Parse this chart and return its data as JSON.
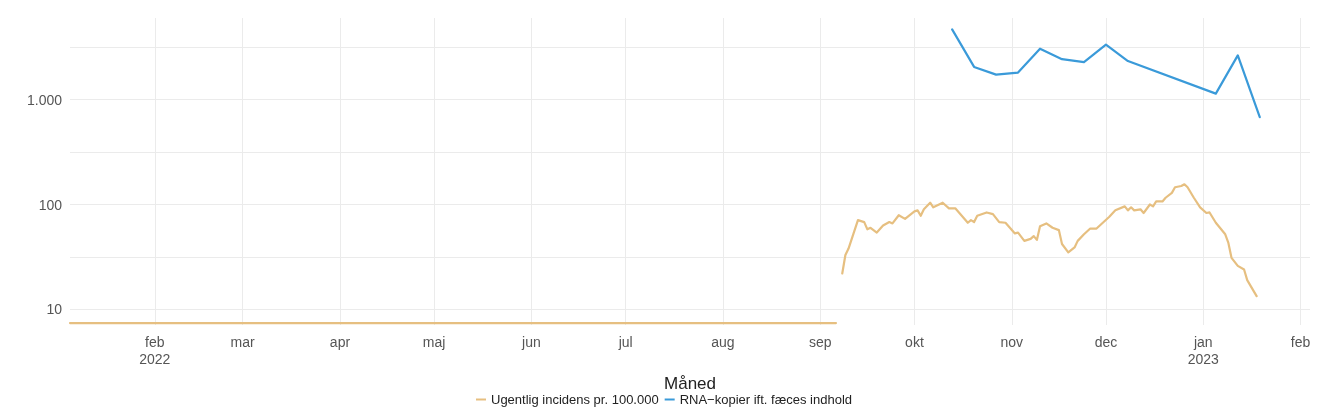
{
  "chart_data": {
    "type": "line",
    "xlabel": "Måned",
    "xlim": [
      "2022-01-05",
      "2023-02-04"
    ],
    "xticks": [
      {
        "value": "2022-02-01",
        "label": "feb\n2022"
      },
      {
        "value": "2022-03-01",
        "label": "mar"
      },
      {
        "value": "2022-04-01",
        "label": "apr"
      },
      {
        "value": "2022-05-01",
        "label": "maj"
      },
      {
        "value": "2022-06-01",
        "label": "jun"
      },
      {
        "value": "2022-07-01",
        "label": "jul"
      },
      {
        "value": "2022-08-01",
        "label": "aug"
      },
      {
        "value": "2022-09-01",
        "label": "sep"
      },
      {
        "value": "2022-10-01",
        "label": "okt"
      },
      {
        "value": "2022-11-01",
        "label": "nov"
      },
      {
        "value": "2022-12-01",
        "label": "dec"
      },
      {
        "value": "2023-01-01",
        "label": "jan\n2023"
      },
      {
        "value": "2023-02-01",
        "label": "feb"
      }
    ],
    "ylim": [
      7.1,
      6000
    ],
    "log": "y",
    "yticks": [
      10,
      {
        "value": 31.62,
        "label": null
      },
      100,
      {
        "value": 316.2,
        "label": null
      },
      {
        "value": 1000,
        "label": "1.000"
      },
      {
        "value": 3162,
        "label": null
      }
    ],
    "grid": true,
    "legend": "bottom",
    "series": [
      {
        "name": "Ugentlig incidens pr. 100.000",
        "color": "#e6bf80",
        "x": [
          "2022-01-05",
          "2022-02-01",
          "2022-03-01",
          "2022-04-01",
          "2022-05-01",
          "2022-06-01",
          "2022-07-01",
          "2022-08-01",
          "2022-09-06",
          "2022-09-07",
          "2022-09-08",
          "2022-09-09",
          "2022-09-10",
          "2022-09-13",
          "2022-09-15",
          "2022-09-16",
          "2022-09-17",
          "2022-09-19",
          "2022-09-21",
          "2022-09-23",
          "2022-09-24",
          "2022-09-26",
          "2022-09-28",
          "2022-10-01",
          "2022-10-02",
          "2022-10-03",
          "2022-10-04",
          "2022-10-06",
          "2022-10-07",
          "2022-10-10",
          "2022-10-12",
          "2022-10-14",
          "2022-10-18",
          "2022-10-19",
          "2022-10-20",
          "2022-10-21",
          "2022-10-24",
          "2022-10-26",
          "2022-10-28",
          "2022-10-30",
          "2022-11-02",
          "2022-11-03",
          "2022-11-05",
          "2022-11-07",
          "2022-11-08",
          "2022-11-09",
          "2022-11-10",
          "2022-11-12",
          "2022-11-14",
          "2022-11-16",
          "2022-11-17",
          "2022-11-19",
          "2022-11-21",
          "2022-11-22",
          "2022-11-24",
          "2022-11-26",
          "2022-11-28",
          "2022-12-02",
          "2022-12-04",
          "2022-12-07",
          "2022-12-08",
          "2022-12-09",
          "2022-12-10",
          "2022-12-12",
          "2022-12-13",
          "2022-12-15",
          "2022-12-16",
          "2022-12-17",
          "2022-12-19",
          "2022-12-20",
          "2022-12-22",
          "2022-12-23",
          "2022-12-25",
          "2022-12-26",
          "2022-12-27",
          "2022-12-29",
          "2022-12-31",
          "2023-01-02",
          "2023-01-03",
          "2023-01-05",
          "2023-01-08",
          "2023-01-09",
          "2023-01-10",
          "2023-01-12",
          "2023-01-14",
          "2023-01-15",
          "2023-01-18"
        ],
        "values": [
          7.4,
          7.4,
          7.4,
          7.4,
          7.4,
          7.4,
          7.4,
          7.4,
          7.4,
          null,
          22,
          33,
          38,
          71,
          68,
          58,
          60,
          54,
          63,
          68,
          66,
          79,
          73,
          86,
          88,
          78,
          90,
          104,
          94,
          104,
          92,
          92,
          67,
          71,
          68,
          78,
          84,
          81,
          68,
          67,
          53,
          54,
          45,
          47,
          50,
          46,
          62,
          66,
          60,
          57,
          42,
          35,
          39,
          45,
          52,
          59,
          59,
          76,
          88,
          96,
          88,
          94,
          88,
          90,
          83,
          100,
          96,
          107,
          107,
          116,
          129,
          146,
          150,
          156,
          146,
          116,
          94,
          83,
          84,
          67,
          52,
          43,
          31,
          26,
          24,
          19,
          13.4
        ]
      },
      {
        "name": "RNA−kopier ift. fæces indhold",
        "color": "#3a9ad9",
        "x": [
          "2022-10-13",
          "2022-10-20",
          "2022-10-27",
          "2022-11-03",
          "2022-11-10",
          "2022-11-17",
          "2022-11-24",
          "2022-12-01",
          "2022-12-08",
          "2023-01-05",
          "2023-01-12",
          "2023-01-19"
        ],
        "values": [
          4670,
          2050,
          1730,
          1810,
          3060,
          2430,
          2280,
          3340,
          2330,
          1140,
          2640,
          680
        ]
      }
    ]
  }
}
